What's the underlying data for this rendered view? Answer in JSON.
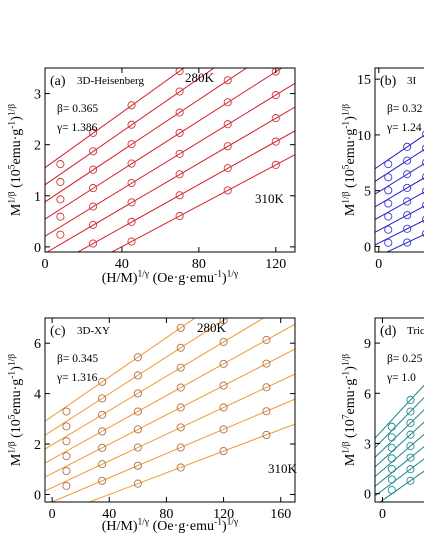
{
  "chart_data": [
    {
      "type": "line",
      "label": "(a)",
      "model": "3D-Heisenberg",
      "beta": "β= 0.365",
      "gamma": "γ= 1.386",
      "annotations": [
        "280K",
        "310K"
      ],
      "xlabel": [
        "(H/M)",
        "1/γ",
        " (Oe·g·emu",
        "-1",
        ")",
        "1/γ"
      ],
      "ylabel": [
        "M",
        "1/β",
        " (10",
        "5",
        "emu·g",
        "-1",
        ")",
        "1/β"
      ],
      "xlim": [
        0,
        130
      ],
      "xticks": [
        0,
        40,
        80,
        120
      ],
      "ylim": [
        -0.1,
        3.5
      ],
      "yticks": [
        0,
        1,
        2,
        3
      ],
      "marker_color": "#d0343c",
      "series": [
        {
          "color": "#d81e2c",
          "fit": [
            0.027,
            1.55
          ],
          "x": [
            8,
            25,
            45,
            70
          ],
          "values": [
            1.62,
            2.23,
            2.77,
            3.44
          ]
        },
        {
          "color": "#d81e2c",
          "fit": [
            0.026,
            1.215
          ],
          "x": [
            8,
            25,
            45,
            70
          ],
          "values": [
            1.27,
            1.87,
            2.39,
            3.04
          ]
        },
        {
          "color": "#d81e2c",
          "fit": [
            0.025,
            0.88
          ],
          "x": [
            8,
            25,
            45,
            70,
            95
          ],
          "values": [
            0.93,
            1.51,
            2.01,
            2.63,
            3.26
          ]
        },
        {
          "color": "#d81e2c",
          "fit": [
            0.024,
            0.545
          ],
          "x": [
            8,
            25,
            45,
            70,
            95,
            120
          ],
          "values": [
            0.59,
            1.15,
            1.63,
            2.23,
            2.83,
            3.43
          ]
        },
        {
          "color": "#d81e2c",
          "fit": [
            0.023,
            0.21
          ],
          "x": [
            8,
            25,
            45,
            70,
            95,
            120
          ],
          "values": [
            0.24,
            0.79,
            1.25,
            1.82,
            2.4,
            2.97
          ]
        },
        {
          "color": "#d81e2c",
          "fit": [
            0.022,
            -0.125
          ],
          "x": [
            25,
            45,
            70,
            95,
            120
          ],
          "values": [
            0.43,
            0.87,
            1.42,
            1.97,
            2.52
          ]
        },
        {
          "color": "#d81e2c",
          "fit": [
            0.021,
            -0.46
          ],
          "x": [
            25,
            45,
            70,
            95,
            120
          ],
          "values": [
            0.065,
            0.49,
            1.01,
            1.54,
            2.06
          ]
        },
        {
          "color": "#d81e2c",
          "fit": [
            0.02,
            -0.795
          ],
          "x": [
            45,
            70,
            95,
            120
          ],
          "values": [
            0.105,
            0.605,
            1.105,
            1.605
          ]
        }
      ]
    },
    {
      "type": "line",
      "label": "(b)",
      "model": "3I",
      "beta": "β= 0.32",
      "gamma": "γ= 1.24",
      "annotations": [],
      "ylabel": [
        "M",
        "1/β",
        " (10",
        "5",
        "emu·g",
        "-1",
        ")",
        "1/β"
      ],
      "xlim": [
        -2,
        130
      ],
      "xticks": [
        0
      ],
      "ylim": [
        -0.5,
        16
      ],
      "yticks": [
        0,
        5,
        10,
        15
      ],
      "marker_color": "#3a3ad0",
      "series": [
        {
          "color": "#2020c8",
          "fit": [
            0.115,
            7.2
          ],
          "x": [
            5,
            15,
            25
          ],
          "values": [
            7.38,
            8.93,
            10.08
          ]
        },
        {
          "color": "#2020c8",
          "fit": [
            0.11,
            6.05
          ],
          "x": [
            5,
            15,
            25
          ],
          "values": [
            6.2,
            7.7,
            8.8
          ]
        },
        {
          "color": "#2020c8",
          "fit": [
            0.105,
            4.9
          ],
          "x": [
            5,
            15,
            25
          ],
          "values": [
            5.03,
            6.48,
            7.53
          ]
        },
        {
          "color": "#2020c8",
          "fit": [
            0.1,
            3.75
          ],
          "x": [
            5,
            15,
            25
          ],
          "values": [
            3.85,
            5.25,
            6.25
          ]
        },
        {
          "color": "#2020c8",
          "fit": [
            0.095,
            2.6
          ],
          "x": [
            5,
            15,
            25
          ],
          "values": [
            2.68,
            4.03,
            4.98
          ]
        },
        {
          "color": "#2020c8",
          "fit": [
            0.09,
            1.45
          ],
          "x": [
            5,
            15,
            25
          ],
          "values": [
            1.5,
            2.8,
            3.7
          ]
        },
        {
          "color": "#2020c8",
          "fit": [
            0.085,
            0.3
          ],
          "x": [
            5,
            15,
            25
          ],
          "values": [
            0.33,
            1.58,
            2.43
          ]
        },
        {
          "color": "#2020c8",
          "fit": [
            0.08,
            -0.85
          ],
          "x": [
            15,
            25
          ],
          "values": [
            0.35,
            1.15
          ]
        }
      ]
    },
    {
      "type": "line",
      "label": "(c)",
      "model": "3D-XY",
      "beta": "β= 0.345",
      "gamma": "γ= 1.316",
      "annotations": [
        "280K",
        "310K"
      ],
      "xlabel": [
        "(H/M)",
        "1/γ",
        " (Oe·g·emu",
        "-1",
        ")",
        "1/γ"
      ],
      "ylabel": [
        "M",
        "1/β",
        " (10",
        "5",
        "emu·g",
        "-1",
        ")",
        "1/β"
      ],
      "xlim": [
        -5,
        170
      ],
      "xticks": [
        0,
        40,
        80,
        120,
        160
      ],
      "ylim": [
        -0.3,
        7
      ],
      "yticks": [
        0,
        2,
        4,
        6
      ],
      "marker_color": "#b0704a",
      "series": [
        {
          "color": "#ee9a30",
          "fit": [
            0.039,
            3.1
          ],
          "x": [
            10,
            35,
            60,
            90
          ],
          "values": [
            3.29,
            4.47,
            5.44,
            6.61
          ]
        },
        {
          "color": "#ee9a30",
          "fit": [
            0.0365,
            2.534
          ],
          "x": [
            10,
            35,
            60,
            90,
            120
          ],
          "values": [
            2.7,
            3.81,
            4.72,
            5.82,
            6.91
          ]
        },
        {
          "color": "#ee9a30",
          "fit": [
            0.034,
            1.968
          ],
          "x": [
            10,
            35,
            60,
            90,
            120
          ],
          "values": [
            2.11,
            3.16,
            4.01,
            5.03,
            6.05
          ]
        },
        {
          "color": "#ee9a30",
          "fit": [
            0.0315,
            1.402
          ],
          "x": [
            10,
            35,
            60,
            90,
            120,
            150
          ],
          "values": [
            1.52,
            2.5,
            3.29,
            4.24,
            5.18,
            6.13
          ]
        },
        {
          "color": "#ee9a30",
          "fit": [
            0.029,
            0.836
          ],
          "x": [
            10,
            35,
            60,
            90,
            120,
            150
          ],
          "values": [
            0.93,
            1.85,
            2.58,
            3.45,
            4.32,
            5.19
          ]
        },
        {
          "color": "#ee9a30",
          "fit": [
            0.0265,
            0.27
          ],
          "x": [
            10,
            35,
            60,
            90,
            120,
            150
          ],
          "values": [
            0.34,
            1.2,
            1.86,
            2.66,
            3.45,
            4.25
          ]
        },
        {
          "color": "#ee9a30",
          "fit": [
            0.024,
            -0.296
          ],
          "x": [
            35,
            60,
            90,
            120,
            150
          ],
          "values": [
            0.54,
            1.14,
            1.86,
            2.58,
            3.3
          ]
        },
        {
          "color": "#ee9a30",
          "fit": [
            0.0215,
            -0.862
          ],
          "x": [
            60,
            90,
            120,
            150
          ],
          "values": [
            0.43,
            1.07,
            1.72,
            2.36
          ]
        }
      ]
    },
    {
      "type": "line",
      "label": "(d)",
      "model": "Tric",
      "beta": "β= 0.25",
      "gamma": "γ= 1.0",
      "annotations": [],
      "ylabel": [
        "M",
        "1/β",
        " (10",
        "7",
        "emu·g",
        "-1",
        ")",
        "1/β"
      ],
      "xlim": [
        -4,
        130
      ],
      "xticks": [
        0
      ],
      "ylim": [
        -0.5,
        10.5
      ],
      "yticks": [
        0,
        3,
        6,
        9
      ],
      "marker_color": "#2a8a8a",
      "series": [
        {
          "color": "#1a8a8a",
          "fit": [
            0.12,
            3.8
          ],
          "x": [
            5,
            15,
            25
          ],
          "values": [
            4.0,
            5.6,
            6.8
          ]
        },
        {
          "color": "#1a8a8a",
          "fit": [
            0.114,
            3.2
          ],
          "x": [
            5,
            15,
            25
          ],
          "values": [
            3.37,
            4.91,
            6.05
          ]
        },
        {
          "color": "#1a8a8a",
          "fit": [
            0.108,
            2.6
          ],
          "x": [
            5,
            15,
            25
          ],
          "values": [
            2.74,
            4.22,
            5.3
          ]
        },
        {
          "color": "#1a8a8a",
          "fit": [
            0.102,
            2.0
          ],
          "x": [
            5,
            15,
            25
          ],
          "values": [
            2.11,
            3.53,
            4.55
          ]
        },
        {
          "color": "#1a8a8a",
          "fit": [
            0.096,
            1.4
          ],
          "x": [
            5,
            15,
            25
          ],
          "values": [
            1.48,
            2.84,
            3.8
          ]
        },
        {
          "color": "#1a8a8a",
          "fit": [
            0.09,
            0.8
          ],
          "x": [
            5,
            15,
            25
          ],
          "values": [
            0.85,
            2.15,
            3.05
          ]
        },
        {
          "color": "#1a8a8a",
          "fit": [
            0.084,
            0.2
          ],
          "x": [
            5,
            15,
            25
          ],
          "values": [
            0.22,
            1.46,
            2.3
          ]
        },
        {
          "color": "#1a8a8a",
          "fit": [
            0.078,
            -0.4
          ],
          "x": [
            15,
            25
          ],
          "values": [
            0.77,
            1.55
          ]
        }
      ]
    }
  ]
}
